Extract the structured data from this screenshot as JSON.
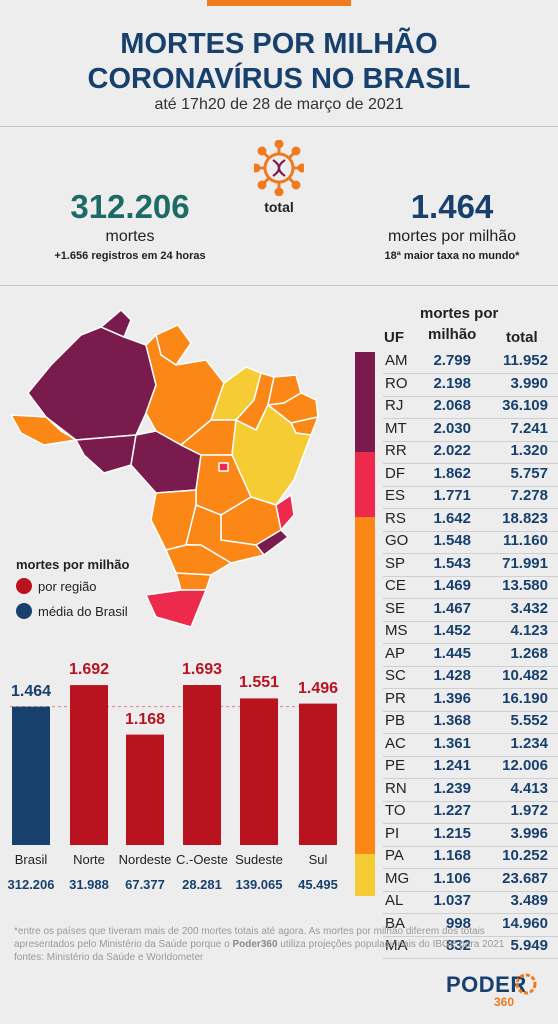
{
  "header": {
    "title_line1": "MORTES POR MILHÃO",
    "title_line2": "CORONAVÍRUS NO BRASIL",
    "subtitle": "até 17h20 de 28 de março de 2021"
  },
  "stats": {
    "virus_label": "total",
    "total_deaths": "312.206",
    "total_deaths_label": "mortes",
    "total_deaths_note": "+1.656 registros em 24 horas",
    "per_million": "1.464",
    "per_million_label": "mortes por milhão",
    "per_million_note": "18ª maior taxa no mundo*"
  },
  "colors": {
    "navy": "#17406d",
    "purple": "#7a1b4e",
    "pink": "#ee2a4c",
    "orange": "#fb8716",
    "yellow": "#f6cc35",
    "red_bar": "#b8131e"
  },
  "legend": {
    "title": "mortes por milhão",
    "region": "por região",
    "brazil": "média do Brasil"
  },
  "table": {
    "head_uf": "UF",
    "head_rate_1": "mortes por",
    "head_rate_2": "milhão",
    "head_total": "total",
    "rows": [
      {
        "uf": "AM",
        "rate": "2.799",
        "total": "11.952"
      },
      {
        "uf": "RO",
        "rate": "2.198",
        "total": "3.990"
      },
      {
        "uf": "RJ",
        "rate": "2.068",
        "total": "36.109"
      },
      {
        "uf": "MT",
        "rate": "2.030",
        "total": "7.241"
      },
      {
        "uf": "RR",
        "rate": "2.022",
        "total": "1.320"
      },
      {
        "uf": "DF",
        "rate": "1.862",
        "total": "5.757"
      },
      {
        "uf": "ES",
        "rate": "1.771",
        "total": "7.278"
      },
      {
        "uf": "RS",
        "rate": "1.642",
        "total": "18.823"
      },
      {
        "uf": "GO",
        "rate": "1.548",
        "total": "11.160"
      },
      {
        "uf": "SP",
        "rate": "1.543",
        "total": "71.991"
      },
      {
        "uf": "CE",
        "rate": "1.469",
        "total": "13.580"
      },
      {
        "uf": "SE",
        "rate": "1.467",
        "total": "3.432"
      },
      {
        "uf": "MS",
        "rate": "1.452",
        "total": "4.123"
      },
      {
        "uf": "AP",
        "rate": "1.445",
        "total": "1.268"
      },
      {
        "uf": "SC",
        "rate": "1.428",
        "total": "10.482"
      },
      {
        "uf": "PR",
        "rate": "1.396",
        "total": "16.190"
      },
      {
        "uf": "PB",
        "rate": "1.368",
        "total": "5.552"
      },
      {
        "uf": "AC",
        "rate": "1.361",
        "total": "1.234"
      },
      {
        "uf": "PE",
        "rate": "1.241",
        "total": "12.006"
      },
      {
        "uf": "RN",
        "rate": "1.239",
        "total": "4.413"
      },
      {
        "uf": "TO",
        "rate": "1.227",
        "total": "1.972"
      },
      {
        "uf": "PI",
        "rate": "1.215",
        "total": "3.996"
      },
      {
        "uf": "PA",
        "rate": "1.168",
        "total": "10.252"
      },
      {
        "uf": "MG",
        "rate": "1.106",
        "total": "23.687"
      },
      {
        "uf": "AL",
        "rate": "1.037",
        "total": "3.489"
      },
      {
        "uf": "BA",
        "rate": "998",
        "total": "14.960"
      },
      {
        "uf": "MA",
        "rate": "832",
        "total": "5.949"
      }
    ]
  },
  "chart_data": {
    "type": "bar",
    "categories": [
      "Brasil",
      "Norte",
      "Nordeste",
      "C.-Oeste",
      "Sudeste",
      "Sul"
    ],
    "values": [
      1464,
      1692,
      1168,
      1693,
      1551,
      1496
    ],
    "value_labels": [
      "1.464",
      "1.692",
      "1.168",
      "1.693",
      "1.551",
      "1.496"
    ],
    "totals": [
      "312.206",
      "31.988",
      "67.377",
      "28.281",
      "139.065",
      "45.495"
    ],
    "bar_colors": [
      "#17406d",
      "#b8131e",
      "#b8131e",
      "#b8131e",
      "#b8131e",
      "#b8131e"
    ],
    "reference_line": 1464,
    "ylim": [
      0,
      1693
    ]
  },
  "footnote": {
    "line1_a": "*entre os países que tiveram mais de 200 mortes totais até agora. As mortes por milhão diferem dos totais apresentados pelo Ministério da Saúde porque o ",
    "brand": "Poder360",
    "line1_b": " utiliza projeções populacionais do IBGE para 2021",
    "sources": "fontes: Ministério da Saúde e Worldometer"
  },
  "logo": {
    "name": "PODER",
    "number": "360"
  }
}
